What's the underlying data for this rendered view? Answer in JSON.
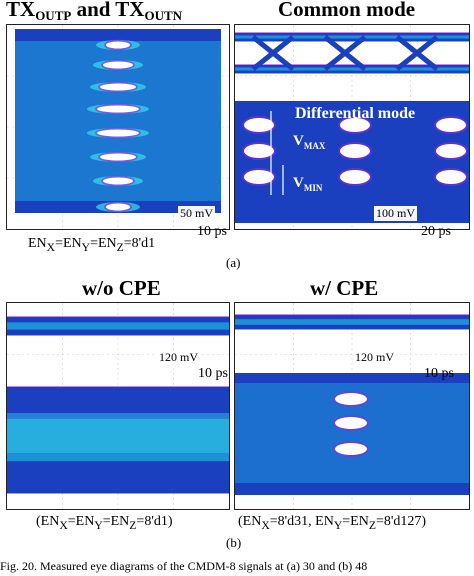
{
  "panel_a": {
    "title_left_main": "TX",
    "title_left_sub1": "OUTP",
    "title_left_mid": " and TX",
    "title_left_sub2": "OUTN",
    "title_right_top": "Common mode",
    "title_right_mid": "Differential mode",
    "vmax": "V",
    "vmax_sub": "MAX",
    "vmin": "V",
    "vmin_sub": "MIN",
    "left_vscale": "50 mV",
    "left_hscale": "10 ps",
    "right_vscale": "100 mV",
    "right_hscale": "20 ps",
    "setting": "EN",
    "setting_x": "X",
    "setting_eq1": "=EN",
    "setting_y": "Y",
    "setting_eq2": "=EN",
    "setting_z": "Z",
    "setting_val": "=8'd1",
    "label": "(a)"
  },
  "panel_b": {
    "title_left": "w/o CPE",
    "title_right": "w/ CPE",
    "left_vscale": "120 mV",
    "left_hscale": "10 ps",
    "right_vscale": "120 mV",
    "right_hscale": "10 ps",
    "left_setting_open": "(EN",
    "left_setting_x": "X",
    "left_setting_eq1": "=EN",
    "left_setting_y": "Y",
    "left_setting_eq2": "=EN",
    "left_setting_z": "Z",
    "left_setting_val": "=8'd1)",
    "right_setting_open": "(EN",
    "right_setting_x": "X",
    "right_setting_mid": "=8'd31, EN",
    "right_setting_y": "Y",
    "right_setting_eq": "=EN",
    "right_setting_z": "Z",
    "right_setting_val": "=8'd127)",
    "label": "(b)"
  },
  "caption": "Fig. 20.   Measured eye diagrams of the CMDM-8 signals at (a) 30 and (b) 48",
  "colors": {
    "trace_dark": "#1a3fbf",
    "trace_mid": "#1e90d8",
    "trace_light": "#36d0e8",
    "trace_edge": "#8a2be2"
  }
}
